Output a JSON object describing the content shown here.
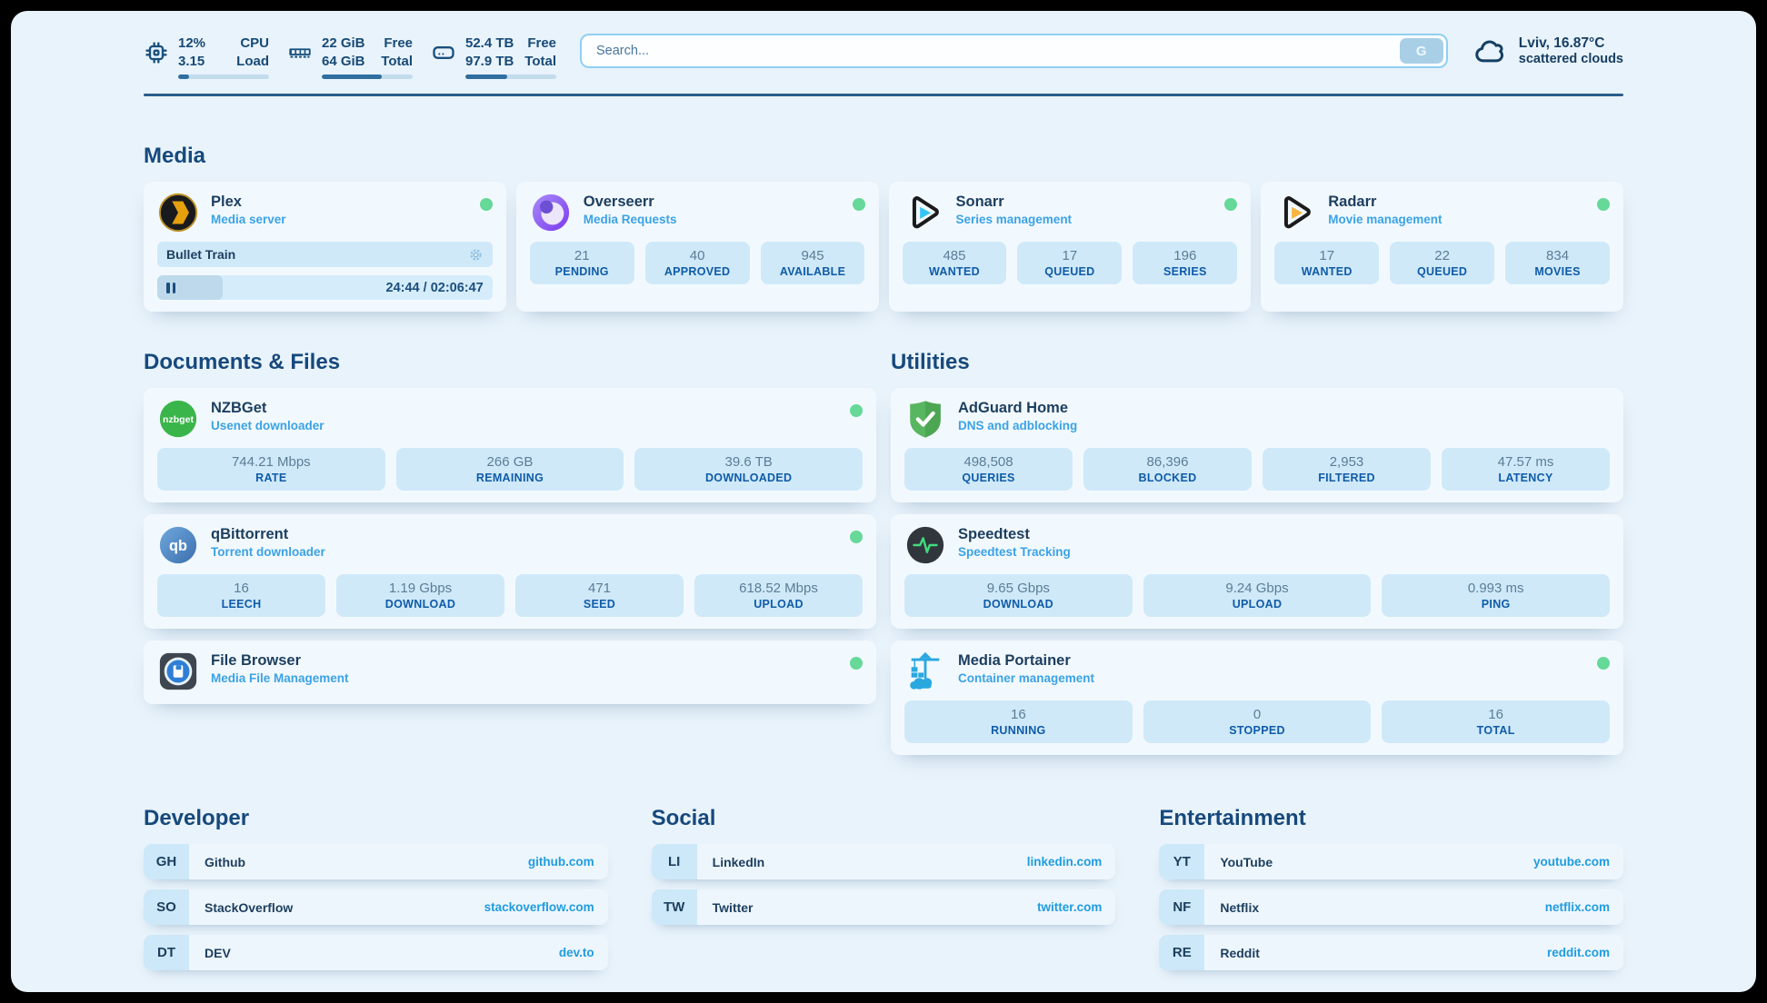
{
  "colors": {
    "panel_bg": "#e9f3fb",
    "navy_text": "#1c3e5e",
    "section_header": "#16497d",
    "subtitle_blue": "#3ba2e5",
    "stat_value": "#5b7d96",
    "stat_label": "#0f5ba8",
    "stat_box_bg": "#cfe9f9",
    "status_online": "#66d898",
    "link_url": "#1f9cdf",
    "progress_fill": "#2f6e9f"
  },
  "topbar": {
    "system_stats": [
      {
        "icon": "cpu-icon",
        "values": [
          "12%",
          "3.15"
        ],
        "labels": [
          "CPU",
          "Load"
        ],
        "progress_pct": 12
      },
      {
        "icon": "ram-icon",
        "values": [
          "22 GiB",
          "64 GiB"
        ],
        "labels": [
          "Free",
          "Total"
        ],
        "progress_pct": 66
      },
      {
        "icon": "disk-icon",
        "values": [
          "52.4 TB",
          "97.9 TB"
        ],
        "labels": [
          "Free",
          "Total"
        ],
        "progress_pct": 46
      }
    ],
    "search": {
      "placeholder": "Search...",
      "button_label": "G"
    },
    "weather": {
      "line1": "Lviv, 16.87°C",
      "line2": "scattered clouds"
    }
  },
  "media": {
    "title": "Media",
    "plex": {
      "name": "Plex",
      "desc": "Media server",
      "now_playing": "Bullet Train",
      "time": "24:44 / 02:06:47",
      "progress_pct": 19.5
    },
    "overseerr": {
      "name": "Overseerr",
      "desc": "Media Requests",
      "stats": [
        {
          "value": "21",
          "label": "PENDING"
        },
        {
          "value": "40",
          "label": "APPROVED"
        },
        {
          "value": "945",
          "label": "AVAILABLE"
        }
      ]
    },
    "sonarr": {
      "name": "Sonarr",
      "desc": "Series management",
      "stats": [
        {
          "value": "485",
          "label": "WANTED"
        },
        {
          "value": "17",
          "label": "QUEUED"
        },
        {
          "value": "196",
          "label": "SERIES"
        }
      ]
    },
    "radarr": {
      "name": "Radarr",
      "desc": "Movie management",
      "stats": [
        {
          "value": "17",
          "label": "WANTED"
        },
        {
          "value": "22",
          "label": "QUEUED"
        },
        {
          "value": "834",
          "label": "MOVIES"
        }
      ]
    }
  },
  "documents": {
    "title": "Documents & Files",
    "nzbget": {
      "name": "NZBGet",
      "desc": "Usenet downloader",
      "stats": [
        {
          "value": "744.21 Mbps",
          "label": "RATE"
        },
        {
          "value": "266 GB",
          "label": "REMAINING"
        },
        {
          "value": "39.6 TB",
          "label": "DOWNLOADED"
        }
      ]
    },
    "qbittorrent": {
      "name": "qBittorrent",
      "desc": "Torrent downloader",
      "stats": [
        {
          "value": "16",
          "label": "LEECH"
        },
        {
          "value": "1.19 Gbps",
          "label": "DOWNLOAD"
        },
        {
          "value": "471",
          "label": "SEED"
        },
        {
          "value": "618.52 Mbps",
          "label": "UPLOAD"
        }
      ]
    },
    "filebrowser": {
      "name": "File Browser",
      "desc": "Media File Management"
    }
  },
  "utilities": {
    "title": "Utilities",
    "adguard": {
      "name": "AdGuard Home",
      "desc": "DNS and adblocking",
      "stats": [
        {
          "value": "498,508",
          "label": "QUERIES"
        },
        {
          "value": "86,396",
          "label": "BLOCKED"
        },
        {
          "value": "2,953",
          "label": "FILTERED"
        },
        {
          "value": "47.57 ms",
          "label": "LATENCY"
        }
      ]
    },
    "speedtest": {
      "name": "Speedtest",
      "desc": "Speedtest Tracking",
      "stats": [
        {
          "value": "9.65 Gbps",
          "label": "DOWNLOAD"
        },
        {
          "value": "9.24 Gbps",
          "label": "UPLOAD"
        },
        {
          "value": "0.993 ms",
          "label": "PING"
        }
      ]
    },
    "portainer": {
      "name": "Media Portainer",
      "desc": "Container management",
      "stats": [
        {
          "value": "16",
          "label": "RUNNING"
        },
        {
          "value": "0",
          "label": "STOPPED"
        },
        {
          "value": "16",
          "label": "TOTAL"
        }
      ]
    }
  },
  "links": {
    "developer": {
      "title": "Developer",
      "items": [
        {
          "abbr": "GH",
          "name": "Github",
          "url": "github.com"
        },
        {
          "abbr": "SO",
          "name": "StackOverflow",
          "url": "stackoverflow.com"
        },
        {
          "abbr": "DT",
          "name": "DEV",
          "url": "dev.to"
        }
      ]
    },
    "social": {
      "title": "Social",
      "items": [
        {
          "abbr": "LI",
          "name": "LinkedIn",
          "url": "linkedin.com"
        },
        {
          "abbr": "TW",
          "name": "Twitter",
          "url": "twitter.com"
        }
      ]
    },
    "entertainment": {
      "title": "Entertainment",
      "items": [
        {
          "abbr": "YT",
          "name": "YouTube",
          "url": "youtube.com"
        },
        {
          "abbr": "NF",
          "name": "Netflix",
          "url": "netflix.com"
        },
        {
          "abbr": "RE",
          "name": "Reddit",
          "url": "reddit.com"
        }
      ]
    }
  }
}
